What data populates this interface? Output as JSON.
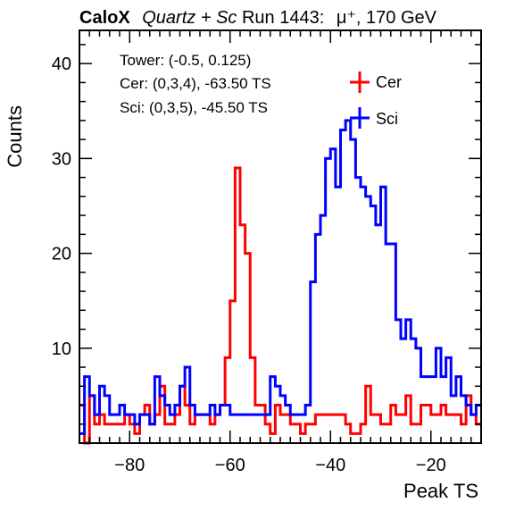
{
  "header": {
    "brand": "CaloX",
    "material": "Quartz + Sc",
    "run": "Run 1443:",
    "particle": "μ⁺, 170 GeV"
  },
  "info": {
    "tower": "Tower: (-0.5, 0.125)",
    "cer": "Cer: (0,3,4), -63.50 TS",
    "sci": "Sci: (0,3,5), -45.50 TS"
  },
  "chart_data": {
    "type": "histogram",
    "xlabel": "Peak TS",
    "ylabel": "Counts",
    "xlim": [
      -90,
      -10
    ],
    "ylim": [
      0,
      43.5
    ],
    "x_ticks": [
      -80,
      -60,
      -40,
      -20
    ],
    "y_ticks": [
      10,
      20,
      30,
      40
    ],
    "bin_width": 1,
    "bin_start": -90,
    "legend_position": "top-right",
    "series": [
      {
        "name": "Cer",
        "color": "#ff0000",
        "values": [
          4,
          0,
          5,
          2,
          3,
          2,
          2,
          2,
          2,
          3,
          2,
          1,
          3,
          4,
          2,
          3,
          6,
          2,
          2,
          3,
          6,
          4,
          2,
          3,
          3,
          3,
          2,
          3,
          4,
          9,
          15,
          29,
          23,
          20,
          9,
          4,
          4,
          2,
          1,
          4,
          3,
          3,
          2,
          2,
          1,
          2,
          2,
          3,
          3,
          3,
          3,
          3,
          3,
          2,
          1,
          1,
          2,
          6,
          3,
          3,
          2,
          2,
          4,
          3,
          3,
          5,
          2,
          2,
          4,
          4,
          3,
          3,
          4,
          3,
          3,
          3,
          2,
          5,
          3,
          2
        ]
      },
      {
        "name": "Sci",
        "color": "#0000ff",
        "values": [
          1,
          7,
          5,
          3,
          6,
          5,
          3,
          3,
          4,
          3,
          3,
          2,
          3,
          3,
          2,
          7,
          5,
          4,
          3,
          4,
          6,
          8,
          4,
          3,
          3,
          3,
          4,
          3,
          4,
          4,
          3,
          3,
          3,
          3,
          3,
          3,
          3,
          3,
          7,
          6,
          5,
          4,
          3,
          3,
          3,
          4,
          17,
          22,
          24,
          30,
          31,
          27,
          33,
          34,
          32,
          28,
          27,
          26,
          25,
          23,
          27,
          21,
          21,
          13,
          11,
          13,
          11,
          10,
          7,
          7,
          7,
          10,
          7,
          9,
          5,
          7,
          5,
          4,
          3,
          4
        ]
      }
    ]
  }
}
